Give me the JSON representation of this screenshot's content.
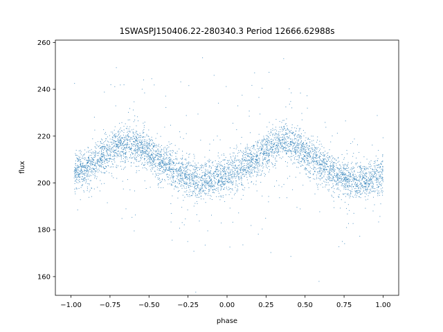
{
  "chart_data": {
    "type": "scatter",
    "title": "1SWASPJ150406.22-280340.3 Period 12666.62988s",
    "xlabel": "phase",
    "ylabel": "flux",
    "xlim": [
      -1.1,
      1.1
    ],
    "ylim": [
      152,
      261
    ],
    "x_ticks": [
      -1.0,
      -0.75,
      -0.5,
      -0.25,
      0.0,
      0.25,
      0.5,
      0.75,
      1.0
    ],
    "x_tick_labels": [
      "−1.00",
      "−0.75",
      "−0.50",
      "−0.25",
      "0.00",
      "0.25",
      "0.50",
      "0.75",
      "1.00"
    ],
    "y_ticks": [
      160,
      180,
      200,
      220,
      240,
      260
    ],
    "y_tick_labels": [
      "160",
      "180",
      "200",
      "220",
      "240",
      "260"
    ],
    "grid": false,
    "marker_color": "#1f77b4",
    "trend": {
      "description_values_only": true,
      "phase_of_max": [
        -0.65,
        0.35
      ],
      "phase_of_min": [
        -0.15,
        0.85
      ],
      "flux_max": 217,
      "flux_min": 201,
      "typical_scatter": 4
    },
    "series": [
      {
        "points_sample": [
          [
            -0.98,
            203
          ],
          [
            -0.95,
            206
          ],
          [
            -0.9,
            206
          ],
          [
            -0.85,
            209
          ],
          [
            -0.8,
            211
          ],
          [
            -0.75,
            214
          ],
          [
            -0.7,
            216
          ],
          [
            -0.65,
            217
          ],
          [
            -0.6,
            217
          ],
          [
            -0.55,
            215
          ],
          [
            -0.5,
            213
          ],
          [
            -0.45,
            210
          ],
          [
            -0.4,
            208
          ],
          [
            -0.35,
            206
          ],
          [
            -0.3,
            204
          ],
          [
            -0.25,
            202
          ],
          [
            -0.2,
            201
          ],
          [
            -0.15,
            201
          ],
          [
            -0.1,
            201
          ],
          [
            -0.05,
            202
          ],
          [
            0.0,
            203
          ],
          [
            0.05,
            205
          ],
          [
            0.1,
            207
          ],
          [
            0.15,
            209
          ],
          [
            0.2,
            211
          ],
          [
            0.25,
            214
          ],
          [
            0.3,
            216
          ],
          [
            0.35,
            217
          ],
          [
            0.4,
            217
          ],
          [
            0.45,
            215
          ],
          [
            0.5,
            213
          ],
          [
            0.55,
            210
          ],
          [
            0.6,
            208
          ],
          [
            0.65,
            206
          ],
          [
            0.7,
            204
          ],
          [
            0.75,
            202
          ],
          [
            0.8,
            201
          ],
          [
            0.85,
            201
          ],
          [
            0.9,
            201
          ],
          [
            0.95,
            202
          ],
          [
            1.0,
            203
          ]
        ]
      }
    ]
  }
}
